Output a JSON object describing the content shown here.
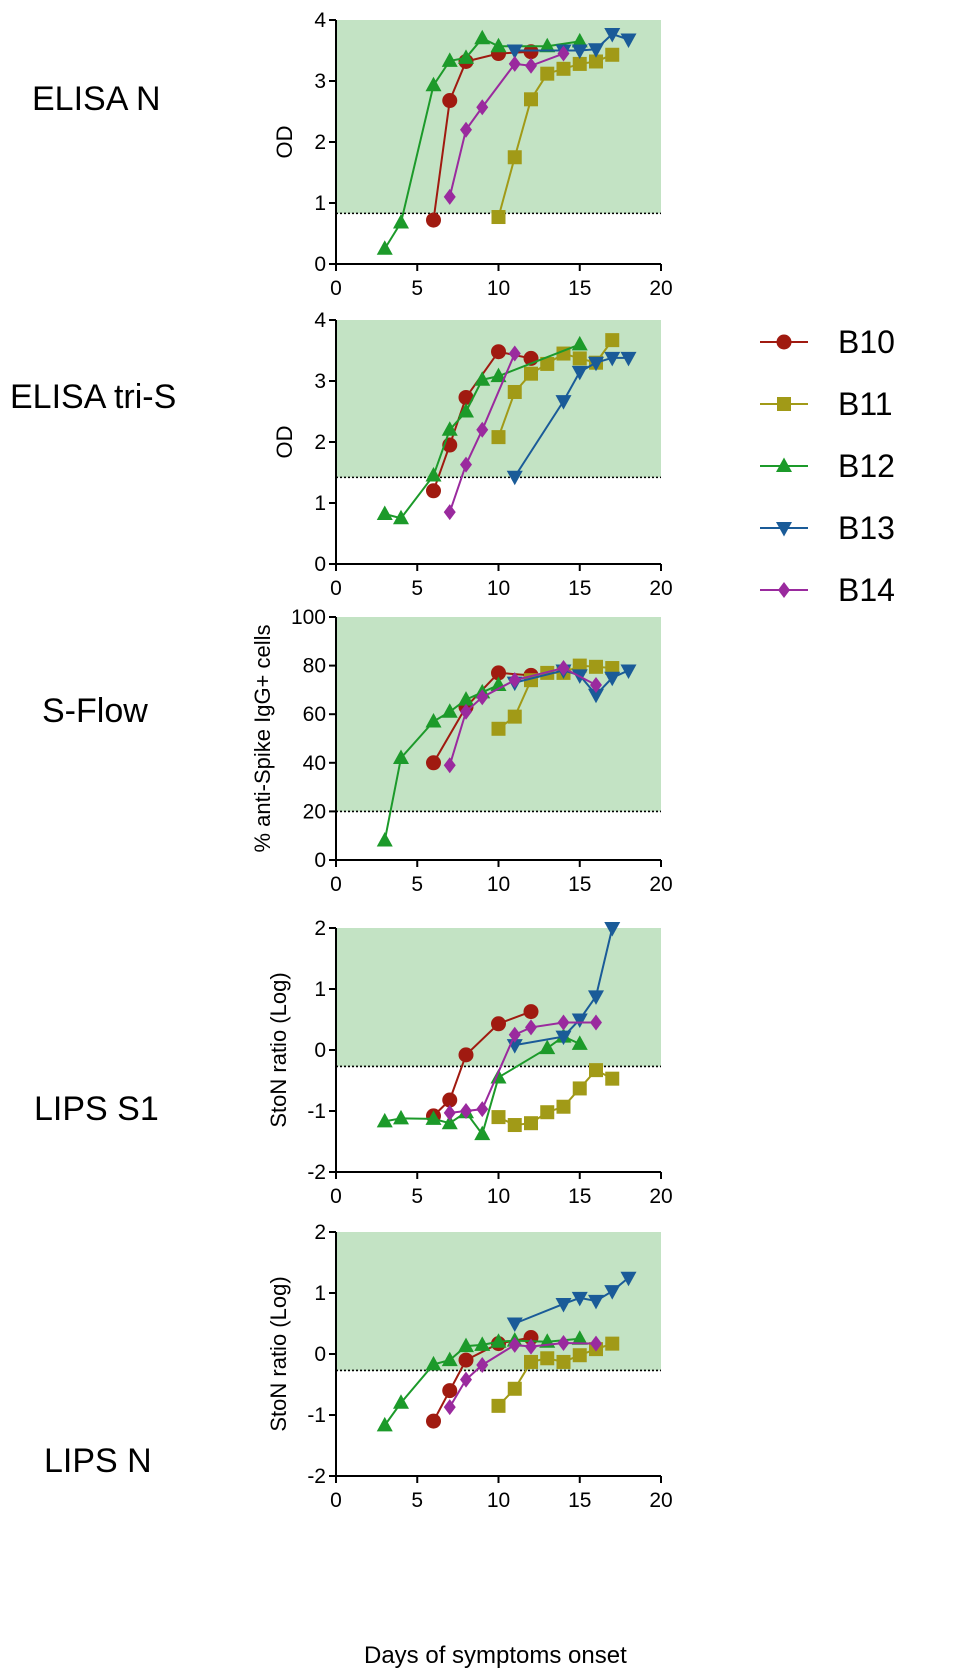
{
  "x_axis_title": "Days of symptoms onset",
  "legend": [
    {
      "name": "B10",
      "color": "#a01a10",
      "marker": "circle"
    },
    {
      "name": "B11",
      "color": "#a19a17",
      "marker": "square"
    },
    {
      "name": "B12",
      "color": "#1c9a2a",
      "marker": "triangle-up"
    },
    {
      "name": "B13",
      "color": "#1a5b98",
      "marker": "triangle-down"
    },
    {
      "name": "B14",
      "color": "#9a2a9e",
      "marker": "diamond"
    }
  ],
  "chart_data": [
    {
      "type": "line",
      "row_label": "ELISA N",
      "ylabel": "OD",
      "xlim": [
        0,
        20
      ],
      "ylim": [
        0,
        4
      ],
      "xticks": [
        "0",
        "5",
        "10",
        "15",
        "20"
      ],
      "yticks": [
        "0",
        "1",
        "2",
        "3",
        "4"
      ],
      "threshold": 0.83,
      "shaded_region": [
        0.83,
        4
      ],
      "shade_color": "#c3e3c4",
      "series": [
        {
          "name": "B10",
          "x": [
            6,
            7,
            8,
            10,
            12
          ],
          "y": [
            0.72,
            2.68,
            3.32,
            3.45,
            3.48
          ]
        },
        {
          "name": "B11",
          "x": [
            10,
            11,
            12,
            13,
            14,
            15,
            16,
            17
          ],
          "y": [
            0.77,
            1.75,
            2.7,
            3.12,
            3.2,
            3.28,
            3.32,
            3.43
          ]
        },
        {
          "name": "B12",
          "x": [
            3,
            4,
            6,
            7,
            8,
            9,
            10,
            13,
            15
          ],
          "y": [
            0.25,
            0.68,
            2.93,
            3.33,
            3.38,
            3.7,
            3.57,
            3.57,
            3.65
          ]
        },
        {
          "name": "B13",
          "x": [
            11,
            14,
            15,
            16,
            17,
            18
          ],
          "y": [
            3.5,
            3.5,
            3.5,
            3.52,
            3.77,
            3.68
          ]
        },
        {
          "name": "B14",
          "x": [
            7,
            8,
            9,
            11,
            12,
            14
          ],
          "y": [
            1.1,
            2.2,
            2.57,
            3.28,
            3.25,
            3.45
          ]
        }
      ]
    },
    {
      "type": "line",
      "row_label": "ELISA tri-S",
      "ylabel": "OD",
      "xlim": [
        0,
        20
      ],
      "ylim": [
        0,
        4
      ],
      "xticks": [
        "0",
        "5",
        "10",
        "15",
        "20"
      ],
      "yticks": [
        "0",
        "1",
        "2",
        "3",
        "4"
      ],
      "threshold": 1.42,
      "shaded_region": [
        1.42,
        4
      ],
      "shade_color": "#c3e3c4",
      "series": [
        {
          "name": "B10",
          "x": [
            6,
            7,
            8,
            10,
            12
          ],
          "y": [
            1.2,
            1.95,
            2.73,
            3.48,
            3.37
          ]
        },
        {
          "name": "B11",
          "x": [
            10,
            11,
            12,
            13,
            14,
            15,
            16,
            17
          ],
          "y": [
            2.08,
            2.82,
            3.12,
            3.28,
            3.45,
            3.37,
            3.3,
            3.67
          ]
        },
        {
          "name": "B12",
          "x": [
            3,
            4,
            6,
            7,
            8,
            9,
            10,
            15
          ],
          "y": [
            0.82,
            0.75,
            1.45,
            2.2,
            2.5,
            3.02,
            3.08,
            3.6
          ]
        },
        {
          "name": "B13",
          "x": [
            11,
            14,
            15,
            16,
            17,
            18
          ],
          "y": [
            1.43,
            2.67,
            3.15,
            3.3,
            3.38,
            3.38
          ]
        },
        {
          "name": "B14",
          "x": [
            7,
            8,
            9,
            11
          ],
          "y": [
            0.85,
            1.63,
            2.2,
            3.45
          ]
        }
      ]
    },
    {
      "type": "line",
      "row_label": "S-Flow",
      "ylabel": "% anti-Spike IgG+ cells",
      "xlim": [
        0,
        20
      ],
      "ylim": [
        0,
        100
      ],
      "xticks": [
        "0",
        "5",
        "10",
        "15",
        "20"
      ],
      "yticks": [
        "0",
        "20",
        "40",
        "60",
        "80",
        "100"
      ],
      "threshold": 20,
      "shaded_region": [
        20,
        100
      ],
      "shade_color": "#c3e3c4",
      "series": [
        {
          "name": "B10",
          "x": [
            6,
            8,
            10,
            12
          ],
          "y": [
            40,
            63,
            77,
            76
          ]
        },
        {
          "name": "B11",
          "x": [
            10,
            11,
            12,
            13,
            14,
            15,
            16,
            17
          ],
          "y": [
            54,
            59,
            74,
            77,
            77,
            80,
            79.5,
            79
          ]
        },
        {
          "name": "B12",
          "x": [
            3,
            4,
            6,
            7,
            8,
            9,
            10
          ],
          "y": [
            8,
            42,
            57,
            61,
            66,
            69,
            72
          ]
        },
        {
          "name": "B13",
          "x": [
            11,
            14,
            15,
            16,
            17,
            18
          ],
          "y": [
            73,
            78,
            76,
            68,
            75,
            78
          ]
        },
        {
          "name": "B14",
          "x": [
            7,
            8,
            9,
            11,
            14,
            16
          ],
          "y": [
            39,
            61,
            67,
            74,
            79,
            72
          ]
        }
      ]
    },
    {
      "type": "line",
      "row_label": "LIPS S1",
      "ylabel": "StoN ratio (Log)",
      "xlim": [
        0,
        20
      ],
      "ylim": [
        -2,
        2
      ],
      "xticks": [
        "0",
        "5",
        "10",
        "15",
        "20"
      ],
      "yticks": [
        "-2",
        "-1",
        "0",
        "1",
        "2"
      ],
      "threshold": -0.27,
      "shaded_region": [
        -0.27,
        2
      ],
      "shade_color": "#c3e3c4",
      "series": [
        {
          "name": "B10",
          "x": [
            6,
            7,
            8,
            10,
            12
          ],
          "y": [
            -1.08,
            -0.82,
            -0.08,
            0.43,
            0.63
          ]
        },
        {
          "name": "B11",
          "x": [
            10,
            11,
            12,
            13,
            14,
            15,
            16,
            17
          ],
          "y": [
            -1.1,
            -1.23,
            -1.2,
            -1.02,
            -0.93,
            -0.63,
            -0.33,
            -0.47
          ]
        },
        {
          "name": "B12",
          "x": [
            3,
            4,
            6,
            7,
            8,
            9,
            10,
            13,
            14,
            15
          ],
          "y": [
            -1.17,
            -1.12,
            -1.13,
            -1.2,
            -1.02,
            -1.38,
            -0.45,
            0.03,
            0.22,
            0.1
          ]
        },
        {
          "name": "B13",
          "x": [
            11,
            14,
            15,
            16,
            17
          ],
          "y": [
            0.08,
            0.22,
            0.5,
            0.88,
            2.0
          ]
        },
        {
          "name": "B14",
          "x": [
            7,
            8,
            9,
            11,
            12,
            14,
            16
          ],
          "y": [
            -1.03,
            -1.0,
            -0.97,
            0.25,
            0.37,
            0.45,
            0.45
          ]
        }
      ]
    },
    {
      "type": "line",
      "row_label": "LIPS N",
      "ylabel": "StoN ratio (Log)",
      "xlim": [
        0,
        20
      ],
      "ylim": [
        -2,
        2
      ],
      "xticks": [
        "0",
        "5",
        "10",
        "15",
        "20"
      ],
      "yticks": [
        "-2",
        "-1",
        "0",
        "1",
        "2"
      ],
      "threshold": -0.27,
      "shaded_region": [
        -0.27,
        2
      ],
      "shade_color": "#c3e3c4",
      "series": [
        {
          "name": "B10",
          "x": [
            6,
            7,
            8,
            10,
            12
          ],
          "y": [
            -1.1,
            -0.6,
            -0.1,
            0.17,
            0.27
          ]
        },
        {
          "name": "B11",
          "x": [
            10,
            11,
            12,
            13,
            14,
            15,
            16,
            17
          ],
          "y": [
            -0.85,
            -0.57,
            -0.13,
            -0.07,
            -0.13,
            -0.02,
            0.08,
            0.17
          ]
        },
        {
          "name": "B12",
          "x": [
            3,
            4,
            6,
            7,
            8,
            9,
            10,
            11,
            13,
            15
          ],
          "y": [
            -1.17,
            -0.8,
            -0.17,
            -0.1,
            0.13,
            0.15,
            0.2,
            0.22,
            0.2,
            0.25
          ]
        },
        {
          "name": "B13",
          "x": [
            11,
            14,
            15,
            16,
            17,
            18
          ],
          "y": [
            0.5,
            0.82,
            0.92,
            0.87,
            1.03,
            1.25
          ]
        },
        {
          "name": "B14",
          "x": [
            7,
            8,
            9,
            11,
            12,
            14,
            16
          ],
          "y": [
            -0.87,
            -0.42,
            -0.18,
            0.15,
            0.12,
            0.18,
            0.17
          ]
        }
      ]
    }
  ]
}
